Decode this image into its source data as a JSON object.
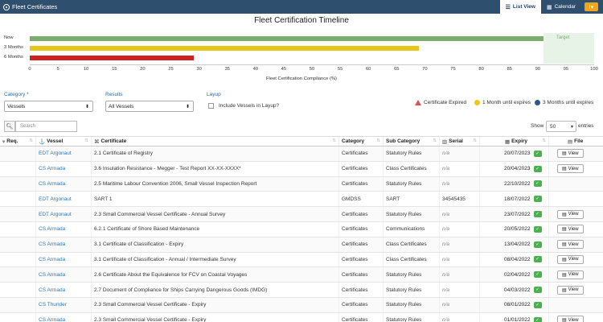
{
  "app": {
    "title": "Fleet Certificates"
  },
  "nav": {
    "list_view": "List View",
    "calendar": "Calendar",
    "warning_count": "!▾"
  },
  "chart_data": {
    "type": "bar",
    "title": "Fleet Certification Timeline",
    "orientation": "horizontal",
    "categories": [
      "Now",
      "3 Months",
      "6 Months"
    ],
    "values": [
      91,
      69,
      29
    ],
    "colors": [
      "#7aae6a",
      "#e6c619",
      "#cc2222"
    ],
    "xlabel": "Fleet Certification Compliance (%)",
    "xlim": [
      0,
      100
    ],
    "xticks": [
      "0",
      "5",
      "10",
      "15",
      "20",
      "25",
      "30",
      "35",
      "40",
      "45",
      "50",
      "55",
      "60",
      "65",
      "70",
      "75",
      "80",
      "85",
      "90",
      "95",
      "100"
    ],
    "annotations": [
      {
        "label": "Target",
        "from": 91,
        "to": 100
      }
    ]
  },
  "filters": {
    "category_label": "Category *",
    "category_value": "Vessels",
    "results_label": "Results",
    "results_value": "All Vessels",
    "layup_label": "Layup",
    "layup_checkbox": "Include Vessels in Layup?"
  },
  "legend": {
    "expired": "Certificate Expired",
    "one_month": "1 Month until expires",
    "three_months": "3 Months until expires",
    "colors": {
      "expired": "#d9534f",
      "one_month": "#f0c419",
      "three_months": "#2a5a8a"
    }
  },
  "search": {
    "placeholder": "Search"
  },
  "paging": {
    "show": "Show",
    "page_size": "50",
    "entries": "entries"
  },
  "table": {
    "headers": {
      "req": "Req.",
      "vessel": "Vessel",
      "certificate": "Certificate",
      "category": "Category",
      "sub_category": "Sub Category",
      "serial": "Serial",
      "expiry": "Expiry",
      "file": "File"
    },
    "view_label": "View",
    "rows": [
      {
        "vessel": "EDT Argonaut",
        "certificate": "2.1 Certificate of Registry",
        "category": "Certificates",
        "sub_category": "Statutory Rules",
        "serial": "n/a",
        "expiry": "20/07/2023",
        "file": true
      },
      {
        "vessel": "CS Armada",
        "certificate": "3.6 Insulation Resistance - Megger - Test Report XX-XX-XXXX*",
        "category": "Certificates",
        "sub_category": "Class Certificates",
        "serial": "n/a",
        "expiry": "20/04/2023",
        "file": true
      },
      {
        "vessel": "CS Armada",
        "certificate": "2.5 Maritime Labour Convention 2006, Small Vessel Inspection Report",
        "category": "Certificates",
        "sub_category": "Statutory Rules",
        "serial": "n/a",
        "expiry": "22/10/2022",
        "file": false
      },
      {
        "vessel": "EDT Argonaut",
        "certificate": "SART 1",
        "category": "GMDSS",
        "sub_category": "SART",
        "serial": "34545435",
        "expiry": "18/07/2022",
        "file": false
      },
      {
        "vessel": "EDT Argonaut",
        "certificate": "2.3 Small Commercial Vessel Certificate - Annual Survey",
        "category": "Certificates",
        "sub_category": "Statutory Rules",
        "serial": "n/a",
        "expiry": "23/07/2022",
        "file": true
      },
      {
        "vessel": "CS Armada",
        "certificate": "6.2.1 Certificate of Shore Based Maintenance",
        "category": "Certificates",
        "sub_category": "Communications",
        "serial": "n/a",
        "expiry": "20/05/2022",
        "file": true
      },
      {
        "vessel": "CS Armada",
        "certificate": "3.1 Certificate of Classification - Expiry",
        "category": "Certificates",
        "sub_category": "Class Certificates",
        "serial": "n/a",
        "expiry": "13/04/2022",
        "file": true
      },
      {
        "vessel": "CS Armada",
        "certificate": "3.1 Certificate of Classification - Annual / Intermediate Survey",
        "category": "Certificates",
        "sub_category": "Class Certificates",
        "serial": "n/a",
        "expiry": "08/04/2022",
        "file": true
      },
      {
        "vessel": "CS Armada",
        "certificate": "2.6 Certificate About the Equivalence for FCV on Coastal Voyages",
        "category": "Certificates",
        "sub_category": "Statutory Rules",
        "serial": "n/a",
        "expiry": "02/04/2022",
        "file": true
      },
      {
        "vessel": "CS Armada",
        "certificate": "2.7 Document of Compliance for Ships Carrying Dangerous Goods (IMDG)",
        "category": "Certificates",
        "sub_category": "Statutory Rules",
        "serial": "n/a",
        "expiry": "04/03/2022",
        "file": true
      },
      {
        "vessel": "CS Thunder",
        "certificate": "2.3 Small Commercial Vessel Certificate - Expiry",
        "category": "Certificates",
        "sub_category": "Statutory Rules",
        "serial": "n/a",
        "expiry": "08/01/2022",
        "file": false
      },
      {
        "vessel": "CS Armada",
        "certificate": "2.3 Small Commercial Vessel Certificate - Expiry",
        "category": "Certificates",
        "sub_category": "Statutory Rules",
        "serial": "n/a",
        "expiry": "01/01/2022",
        "file": true
      }
    ]
  }
}
